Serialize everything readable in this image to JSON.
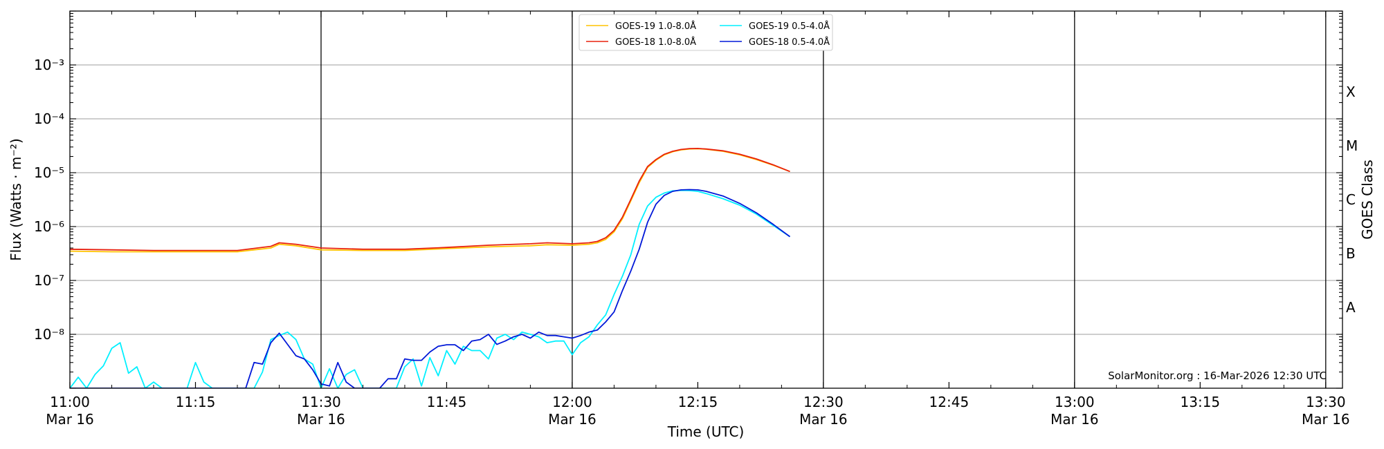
{
  "chart_data": {
    "type": "line",
    "xlabel": "Time (UTC)",
    "ylabel": "Flux (Watts · m⁻²)",
    "y2label": "GOES Class",
    "yscale": "log",
    "xlim": [
      "11:00",
      "13:32"
    ],
    "ylim": [
      1e-09,
      0.01
    ],
    "grid": true,
    "legend_position": "top-center",
    "x_ticks": [
      {
        "time": "11:00",
        "label": "11:00",
        "sublabel": "Mar 16"
      },
      {
        "time": "11:15",
        "label": "11:15",
        "sublabel": ""
      },
      {
        "time": "11:30",
        "label": "11:30",
        "sublabel": "Mar 16"
      },
      {
        "time": "11:45",
        "label": "11:45",
        "sublabel": ""
      },
      {
        "time": "12:00",
        "label": "12:00",
        "sublabel": "Mar 16"
      },
      {
        "time": "12:15",
        "label": "12:15",
        "sublabel": ""
      },
      {
        "time": "12:30",
        "label": "12:30",
        "sublabel": "Mar 16"
      },
      {
        "time": "12:45",
        "label": "12:45",
        "sublabel": ""
      },
      {
        "time": "13:00",
        "label": "13:00",
        "sublabel": "Mar 16"
      },
      {
        "time": "13:15",
        "label": "13:15",
        "sublabel": ""
      },
      {
        "time": "13:30",
        "label": "13:30",
        "sublabel": "Mar 16"
      }
    ],
    "y_ticks": [
      {
        "exp": -8,
        "label": "10⁻⁸"
      },
      {
        "exp": -7,
        "label": "10⁻⁷"
      },
      {
        "exp": -6,
        "label": "10⁻⁶"
      },
      {
        "exp": -5,
        "label": "10⁻⁵"
      },
      {
        "exp": -4,
        "label": "10⁻⁴"
      },
      {
        "exp": -3,
        "label": "10⁻³"
      }
    ],
    "goes_classes": [
      {
        "label": "A",
        "exp": -7.5
      },
      {
        "label": "B",
        "exp": -6.5
      },
      {
        "label": "C",
        "exp": -5.5
      },
      {
        "label": "M",
        "exp": -4.5
      },
      {
        "label": "X",
        "exp": -3.5
      }
    ],
    "vertical_lines": [
      "11:30",
      "12:00",
      "12:30",
      "13:00",
      "13:30"
    ],
    "series": [
      {
        "name": "GOES-19 1.0-8.0Å",
        "color": "#ffc400",
        "x": [
          "11:00",
          "11:05",
          "11:10",
          "11:15",
          "11:20",
          "11:24",
          "11:25",
          "11:27",
          "11:30",
          "11:35",
          "11:40",
          "11:45",
          "11:50",
          "11:55",
          "11:57",
          "12:00",
          "12:02",
          "12:03",
          "12:04",
          "12:05",
          "12:06",
          "12:07",
          "12:08",
          "12:09",
          "12:10",
          "12:11",
          "12:12",
          "12:13",
          "12:14",
          "12:15",
          "12:16",
          "12:18",
          "12:20",
          "12:22",
          "12:24",
          "12:26"
        ],
        "values": [
          3.5e-07,
          3.4e-07,
          3.4e-07,
          3.4e-07,
          3.4e-07,
          4e-07,
          4.7e-07,
          4.4e-07,
          3.7e-07,
          3.6e-07,
          3.6e-07,
          3.9e-07,
          4.2e-07,
          4.4e-07,
          4.6e-07,
          4.5e-07,
          4.7e-07,
          5e-07,
          5.8e-07,
          8e-07,
          1.4e-06,
          3e-06,
          6.5e-06,
          1.25e-05,
          1.7e-05,
          2.15e-05,
          2.45e-05,
          2.65e-05,
          2.75e-05,
          2.78e-05,
          2.72e-05,
          2.5e-05,
          2.15e-05,
          1.75e-05,
          1.38e-05,
          1.05e-05
        ]
      },
      {
        "name": "GOES-18 1.0-8.0Å",
        "color": "#e8200c",
        "x": [
          "11:00",
          "11:05",
          "11:10",
          "11:15",
          "11:20",
          "11:24",
          "11:25",
          "11:27",
          "11:30",
          "11:35",
          "11:40",
          "11:45",
          "11:50",
          "11:55",
          "11:57",
          "12:00",
          "12:02",
          "12:03",
          "12:04",
          "12:05",
          "12:06",
          "12:07",
          "12:08",
          "12:09",
          "12:10",
          "12:11",
          "12:12",
          "12:13",
          "12:14",
          "12:15",
          "12:16",
          "12:18",
          "12:20",
          "12:22",
          "12:24",
          "12:26"
        ],
        "values": [
          3.8e-07,
          3.7e-07,
          3.6e-07,
          3.6e-07,
          3.6e-07,
          4.3e-07,
          5e-07,
          4.7e-07,
          4e-07,
          3.8e-07,
          3.8e-07,
          4.1e-07,
          4.5e-07,
          4.8e-07,
          5e-07,
          4.8e-07,
          5e-07,
          5.3e-07,
          6.2e-07,
          8.5e-07,
          1.5e-06,
          3.2e-06,
          7e-06,
          1.3e-05,
          1.75e-05,
          2.2e-05,
          2.5e-05,
          2.7e-05,
          2.8e-05,
          2.82e-05,
          2.75e-05,
          2.55e-05,
          2.2e-05,
          1.8e-05,
          1.4e-05,
          1.05e-05
        ]
      },
      {
        "name": "GOES-19 0.5-4.0Å",
        "color": "#00f0ff",
        "x": [
          "11:00",
          "11:01",
          "11:02",
          "11:03",
          "11:04",
          "11:05",
          "11:06",
          "11:07",
          "11:08",
          "11:09",
          "11:10",
          "11:11",
          "11:12",
          "11:14",
          "11:15",
          "11:16",
          "11:17",
          "11:22",
          "11:23",
          "11:24",
          "11:25",
          "11:26",
          "11:27",
          "11:28",
          "11:29",
          "11:30",
          "11:31",
          "11:32",
          "11:33",
          "11:34",
          "11:35",
          "11:39",
          "11:40",
          "11:41",
          "11:42",
          "11:43",
          "11:44",
          "11:45",
          "11:46",
          "11:47",
          "11:48",
          "11:49",
          "11:50",
          "11:51",
          "11:52",
          "11:53",
          "11:54",
          "11:55",
          "11:56",
          "11:57",
          "11:58",
          "11:59",
          "12:00",
          "12:01",
          "12:02",
          "12:03",
          "12:04",
          "12:05",
          "12:06",
          "12:07",
          "12:08",
          "12:09",
          "12:10",
          "12:11",
          "12:12",
          "12:13",
          "12:14",
          "12:15",
          "12:16",
          "12:18",
          "12:20",
          "12:22",
          "12:24",
          "12:26"
        ],
        "values": [
          1e-09,
          1.6e-09,
          1e-09,
          1.8e-09,
          2.6e-09,
          5.5e-09,
          7e-09,
          1.9e-09,
          2.5e-09,
          1e-09,
          1.3e-09,
          1e-09,
          1e-09,
          1e-09,
          3e-09,
          1.3e-09,
          1e-09,
          1e-09,
          2e-09,
          8e-09,
          9.5e-09,
          1.1e-08,
          8e-09,
          3.5e-09,
          2.8e-09,
          1e-09,
          2.3e-09,
          1e-09,
          1.8e-09,
          2.2e-09,
          1e-09,
          1e-09,
          2.5e-09,
          3.5e-09,
          1.1e-09,
          3.7e-09,
          1.7e-09,
          5e-09,
          2.8e-09,
          6e-09,
          5e-09,
          5e-09,
          3.5e-09,
          8.5e-09,
          1e-08,
          8e-09,
          1.1e-08,
          1e-08,
          9e-09,
          7e-09,
          7.5e-09,
          7.5e-09,
          4.2e-09,
          7e-09,
          9e-09,
          1.5e-08,
          2.3e-08,
          5.5e-08,
          1.2e-07,
          3e-07,
          1.1e-06,
          2.4e-06,
          3.5e-06,
          4.2e-06,
          4.6e-06,
          4.7e-06,
          4.65e-06,
          4.5e-06,
          4.1e-06,
          3.3e-06,
          2.5e-06,
          1.7e-06,
          1.05e-06,
          6.5e-07
        ]
      },
      {
        "name": "GOES-18 0.5-4.0Å",
        "color": "#0018d8",
        "x": [
          "11:00",
          "11:03",
          "11:06",
          "11:09",
          "11:12",
          "11:15",
          "11:18",
          "11:21",
          "11:22",
          "11:23",
          "11:24",
          "11:25",
          "11:26",
          "11:27",
          "11:28",
          "11:29",
          "11:30",
          "11:31",
          "11:32",
          "11:33",
          "11:34",
          "11:35",
          "11:36",
          "11:37",
          "11:38",
          "11:39",
          "11:40",
          "11:41",
          "11:42",
          "11:43",
          "11:44",
          "11:45",
          "11:46",
          "11:47",
          "11:48",
          "11:49",
          "11:50",
          "11:51",
          "11:52",
          "11:53",
          "11:54",
          "11:55",
          "11:56",
          "11:57",
          "11:58",
          "11:59",
          "12:00",
          "12:01",
          "12:02",
          "12:03",
          "12:04",
          "12:05",
          "12:06",
          "12:07",
          "12:08",
          "12:09",
          "12:10",
          "12:11",
          "12:12",
          "12:13",
          "12:14",
          "12:15",
          "12:16",
          "12:18",
          "12:20",
          "12:22",
          "12:24",
          "12:26"
        ],
        "values": [
          1e-09,
          1e-09,
          1e-09,
          1e-09,
          1e-09,
          1e-09,
          1e-09,
          1e-09,
          3e-09,
          2.8e-09,
          7e-09,
          1.05e-08,
          6.5e-09,
          4e-09,
          3.5e-09,
          2.2e-09,
          1.2e-09,
          1.1e-09,
          3e-09,
          1.3e-09,
          1e-09,
          1e-09,
          1e-09,
          1e-09,
          1.5e-09,
          1.5e-09,
          3.5e-09,
          3.3e-09,
          3.3e-09,
          4.7e-09,
          6e-09,
          6.4e-09,
          6.4e-09,
          5e-09,
          7.5e-09,
          8e-09,
          1e-08,
          6.5e-09,
          7.5e-09,
          9e-09,
          1e-08,
          8.5e-09,
          1.1e-08,
          9.5e-09,
          9.5e-09,
          9e-09,
          8.5e-09,
          9.5e-09,
          1.1e-08,
          1.2e-08,
          1.7e-08,
          2.6e-08,
          6.5e-08,
          1.5e-07,
          3.8e-07,
          1.2e-06,
          2.6e-06,
          3.8e-06,
          4.5e-06,
          4.8e-06,
          4.85e-06,
          4.8e-06,
          4.5e-06,
          3.7e-06,
          2.7e-06,
          1.8e-06,
          1.1e-06,
          6.5e-07
        ]
      }
    ],
    "footer": "SolarMonitor.org : 16-Mar-2026 12:30 UTC"
  }
}
